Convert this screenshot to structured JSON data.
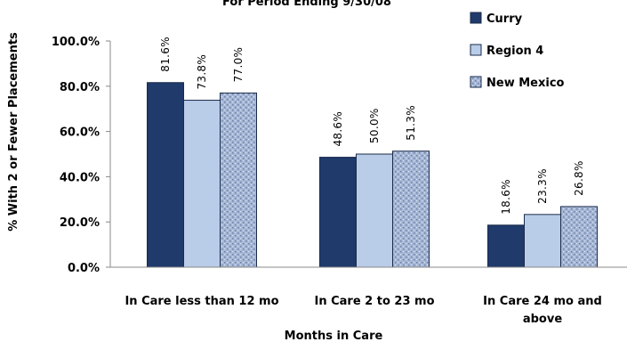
{
  "chart_data": {
    "type": "bar",
    "title": "For Period Ending 9/30/08",
    "xlabel": "Months in Care",
    "ylabel": "% With 2 or Fewer Placements",
    "ylim": [
      0,
      100
    ],
    "yticks": [
      "0.0%",
      "20.0%",
      "40.0%",
      "60.0%",
      "80.0%",
      "100.0%"
    ],
    "categories": [
      [
        "In Care less than 12 mo"
      ],
      [
        "In Care 2 to 23 mo"
      ],
      [
        "In Care 24 mo and",
        "above"
      ]
    ],
    "series": [
      {
        "name": "Curry",
        "values": [
          81.6,
          48.6,
          18.6
        ],
        "labels": [
          "81.6%",
          "48.6%",
          "18.6%"
        ],
        "color": "#1f3a6b",
        "pattern": "solid"
      },
      {
        "name": "Region 4",
        "values": [
          73.8,
          50.0,
          23.3
        ],
        "labels": [
          "73.8%",
          "50.0%",
          "23.3%"
        ],
        "color": "#b9cde8",
        "pattern": "solid"
      },
      {
        "name": "New Mexico",
        "values": [
          77.0,
          51.3,
          26.8
        ],
        "labels": [
          "77.0%",
          "51.3%",
          "26.8%"
        ],
        "color": "#9fb1cf",
        "pattern": "textured"
      }
    ],
    "grid": false,
    "legend": "top-right"
  }
}
